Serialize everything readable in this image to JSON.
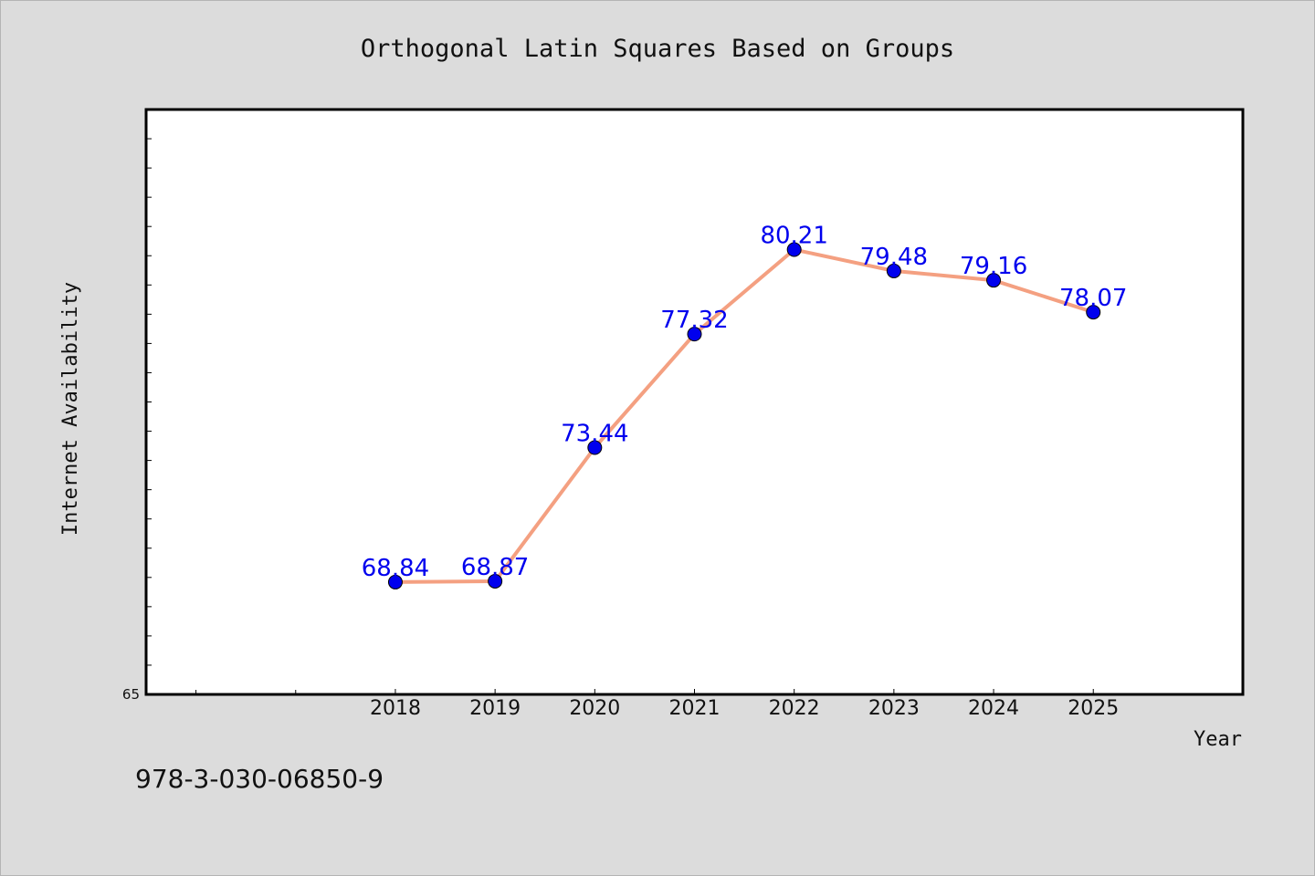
{
  "chart_data": {
    "type": "line",
    "title": "Orthogonal Latin Squares Based on Groups",
    "xlabel": "Year",
    "ylabel": "Internet Availability",
    "x": [
      "2018",
      "2019",
      "2020",
      "2021",
      "2022",
      "2023",
      "2024",
      "2025"
    ],
    "series": [
      {
        "values": [
          68.84,
          68.87,
          73.44,
          77.32,
          80.21,
          79.48,
          79.16,
          78.07
        ]
      }
    ],
    "data_labels": [
      "68.84",
      "68.87",
      "73.44",
      "77.32",
      "80.21",
      "79.48",
      "79.16",
      "78.07"
    ],
    "ylim": [
      65,
      85
    ],
    "y_tick_labels": [
      "65"
    ],
    "x_range": [
      2015.5,
      2026.5
    ],
    "y_minor_tick_step": 1,
    "x_minor_ticks": [
      2016,
      2017
    ],
    "grid": false,
    "legend": "none",
    "colors": {
      "line": "#f4a081",
      "marker": "#0000ee",
      "label": "#0000ee",
      "plot_background": "#ffffff",
      "figure_background": "#dcdcdc"
    }
  },
  "footer_text": "978-3-030-06850-9"
}
